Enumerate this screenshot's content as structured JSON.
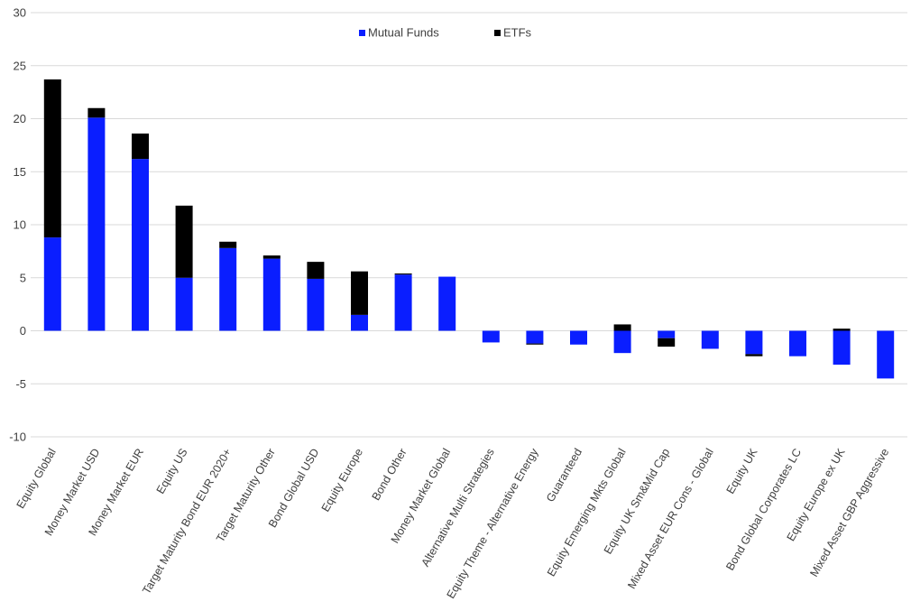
{
  "chart_data": {
    "type": "bar",
    "stacked": true,
    "categories": [
      "Equity Global",
      "Money Market USD",
      "Money Market EUR",
      "Equity US",
      "Target Maturity Bond EUR 2020+",
      "Target Maturity Other",
      "Bond Global USD",
      "Equity Europe",
      "Bond Other",
      "Money Market Global",
      "Alternative Multi Strategies",
      "Equity Theme - Alternative Energy",
      "Guaranteed",
      "Equity Emerging Mkts Global",
      "Equity UK Sm&Mid Cap",
      "Mixed Asset EUR Cons - Global",
      "Equity UK",
      "Bond Global Corporates LC",
      "Equity Europe ex UK",
      "Mixed Asset GBP Aggressive"
    ],
    "series": [
      {
        "name": "Mutual Funds",
        "color": "#0a1eff",
        "values": [
          8.8,
          20.1,
          16.2,
          5.0,
          7.8,
          6.8,
          4.9,
          1.5,
          5.3,
          5.1,
          -1.1,
          -1.2,
          -1.3,
          -2.1,
          -0.7,
          -1.7,
          -2.2,
          -2.4,
          -3.2,
          -4.5
        ]
      },
      {
        "name": "ETFs",
        "color": "#000000",
        "values": [
          14.9,
          0.9,
          2.4,
          6.8,
          0.6,
          0.3,
          1.6,
          4.1,
          0.1,
          0.0,
          0.0,
          -0.1,
          0.0,
          0.6,
          -0.8,
          0.0,
          -0.2,
          0.0,
          0.2,
          0.0
        ]
      }
    ],
    "yticks": [
      30,
      25,
      20,
      15,
      10,
      5,
      0,
      -5,
      -10
    ],
    "ylim": [
      -10,
      30
    ],
    "grid": true,
    "legend_position": "top-center"
  }
}
